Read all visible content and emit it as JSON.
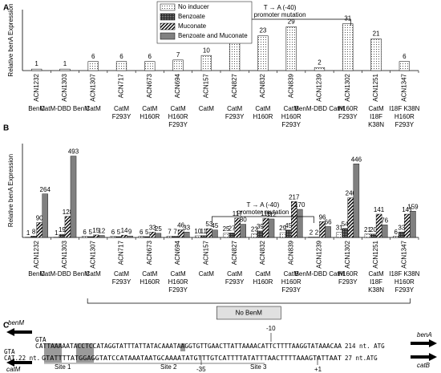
{
  "panel_labels": [
    "A",
    "B",
    "C"
  ],
  "chart_data": [
    {
      "type": "bar",
      "y_label": "Relative benA Expression",
      "categories": [
        "ACN1232",
        "ACN1303",
        "ACN1307",
        "ACN717",
        "ACN673",
        "ACN694",
        "ACN157",
        "ACN827",
        "ACN832",
        "ACN839",
        "ACN1239",
        "ACN1302",
        "ACN1251",
        "ACN1347"
      ],
      "values": [
        1,
        1,
        6,
        6,
        6,
        7,
        10,
        25,
        23,
        29,
        2,
        31,
        21,
        6
      ],
      "fill": "dots",
      "ylim": [
        0,
        35
      ],
      "genotypes": [
        [
          "BenM"
        ],
        [
          "CatM-DBD BenM"
        ],
        [
          "CatM"
        ],
        [
          "CatM",
          "F293Y"
        ],
        [
          "CatM",
          "H160R"
        ],
        [
          "CatM",
          "H160R",
          "F293Y"
        ],
        [
          "CatM"
        ],
        [
          "CatM",
          "F293Y"
        ],
        [
          "CatM",
          "H160R"
        ],
        [
          "CatM",
          "H160R",
          "F293Y"
        ],
        [
          "BenM-DBD CatM"
        ],
        [
          "H160R",
          "F293Y"
        ],
        [
          "CatM",
          "I18F",
          "K38N"
        ],
        [
          "I18F K38N",
          "H160R",
          "F293Y"
        ]
      ],
      "annotations": [
        {
          "text": [
            "T → A (-40)",
            "promoter mutation"
          ]
        }
      ]
    },
    {
      "type": "grouped-bar",
      "y_label": "Relative benA Expression",
      "categories": [
        "ACN1232",
        "ACN1303",
        "ACN1307",
        "ACN717",
        "ACN673",
        "ACN694",
        "ACN157",
        "ACN827",
        "ACN832",
        "ACN839",
        "ACN1239",
        "ACN1302",
        "ACN1251",
        "ACN1347"
      ],
      "series": [
        {
          "name": "No inducer",
          "fill": "dots",
          "values": [
            1,
            1,
            6,
            6,
            6,
            7,
            10,
            25,
            23,
            29,
            2,
            31,
            21,
            6
          ]
        },
        {
          "name": "Benzoate",
          "fill": "checker",
          "values": [
            8,
            19,
            5,
            5,
            5,
            7,
            11,
            27,
            39,
            45,
            2,
            54,
            20,
            33
          ]
        },
        {
          "name": "Muconate",
          "fill": "stripes",
          "values": [
            90,
            128,
            15,
            14,
            33,
            46,
            53,
            117,
            116,
            217,
            96,
            240,
            141,
            141
          ]
        },
        {
          "name": "Benzoate and Muconate",
          "fill": "#808080",
          "values": [
            264,
            493,
            12,
            9,
            25,
            33,
            45,
            80,
            112,
            170,
            66,
            446,
            76,
            159
          ]
        }
      ],
      "ylim": [
        0,
        520
      ],
      "genotypes": [
        [
          "BenM"
        ],
        [
          "CatM-DBD BenM"
        ],
        [
          "CatM"
        ],
        [
          "CatM",
          "F293Y"
        ],
        [
          "CatM",
          "H160R"
        ],
        [
          "CatM",
          "H160R",
          "F293Y"
        ],
        [
          "CatM"
        ],
        [
          "CatM",
          "F293Y"
        ],
        [
          "CatM",
          "H160R"
        ],
        [
          "CatM",
          "H160R",
          "F293Y"
        ],
        [
          "BenM-DBD CatM"
        ],
        [
          "H160R",
          "F293Y"
        ],
        [
          "CatM",
          "I18F",
          "K38N"
        ],
        [
          "I18F K38N",
          "H160R",
          "F293Y"
        ]
      ],
      "annotations": [
        {
          "text": [
            "T → A (-40)",
            "promoter mutation"
          ]
        },
        {
          "text": [
            "No BenM"
          ]
        }
      ]
    }
  ],
  "panel_c": {
    "genes": [
      "benM",
      "benA",
      "catB",
      "catM"
    ],
    "top_start": "GTA",
    "top_sequence": "CATTAAAAATACCTCCATAGGTATTTATTATACAAATAAGGTGTTGAACTTATTAAAACATTCTTTTAAGGTATAAACAA",
    "top_end": "214 nt. ATG",
    "bottom_start": "CAT.22 nt.",
    "bottom_sequence": "GTATTTTATGGAGGTATCCATAAATAATGCAAAATATGTTTGTCATTTTATATTTAACTTTTAAAGTATTAAT",
    "bottom_end": "27 nt.ATG",
    "bottom_gta": "GTA",
    "sites": [
      "Site 1",
      "Site 2",
      "Site 3"
    ],
    "positions": [
      "-10",
      "-35",
      "+1"
    ]
  }
}
